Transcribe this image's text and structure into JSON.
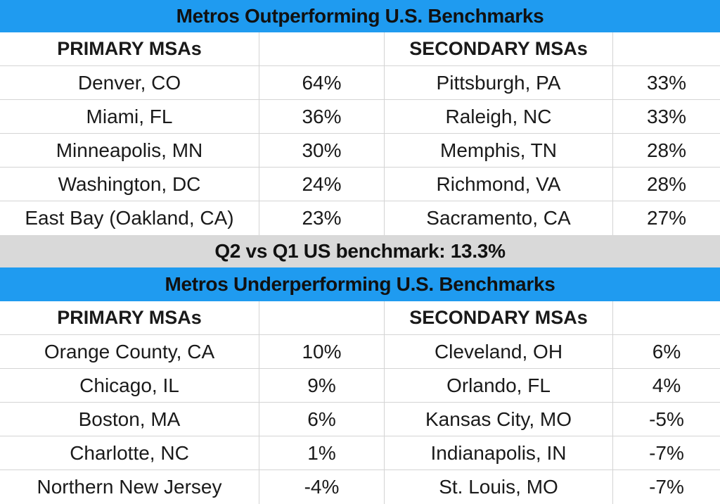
{
  "out_title": "Metros Outperforming U.S. Benchmarks",
  "out_headers": {
    "primary": "PRIMARY MSAs",
    "secondary": "SECONDARY MSAs"
  },
  "out_rows": [
    {
      "p_name": "Denver, CO",
      "p_val": "64%",
      "s_name": "Pittsburgh, PA",
      "s_val": "33%"
    },
    {
      "p_name": "Miami, FL",
      "p_val": "36%",
      "s_name": "Raleigh, NC",
      "s_val": "33%"
    },
    {
      "p_name": "Minneapolis, MN",
      "p_val": "30%",
      "s_name": "Memphis, TN",
      "s_val": "28%"
    },
    {
      "p_name": "Washington,  DC",
      "p_val": "24%",
      "s_name": "Richmond, VA",
      "s_val": "28%"
    },
    {
      "p_name": "East Bay (Oakland, CA)",
      "p_val": "23%",
      "s_name": "Sacramento, CA",
      "s_val": "27%"
    }
  ],
  "benchmark": "Q2 vs Q1 US benchmark: 13.3%",
  "under_title": "Metros Underperforming U.S. Benchmarks",
  "under_headers": {
    "primary": "PRIMARY MSAs",
    "secondary": "SECONDARY MSAs"
  },
  "under_rows": [
    {
      "p_name": "Orange County, CA",
      "p_val": "10%",
      "s_name": "Cleveland, OH",
      "s_val": "6%"
    },
    {
      "p_name": "Chicago, IL",
      "p_val": "9%",
      "s_name": "Orlando, FL",
      "s_val": "4%"
    },
    {
      "p_name": "Boston, MA",
      "p_val": "6%",
      "s_name": "Kansas City, MO",
      "s_val": "-5%"
    },
    {
      "p_name": "Charlotte, NC",
      "p_val": "1%",
      "s_name": "Indianapolis, IN",
      "s_val": "-7%"
    },
    {
      "p_name": "Northern New Jersey",
      "p_val": "-4%",
      "s_name": "St. Louis, MO",
      "s_val": "-7%"
    }
  ],
  "colors": {
    "title_band": "#1f9bf0",
    "benchmark_band": "#d9d9d9",
    "grid_line": "#d4d4d4"
  }
}
